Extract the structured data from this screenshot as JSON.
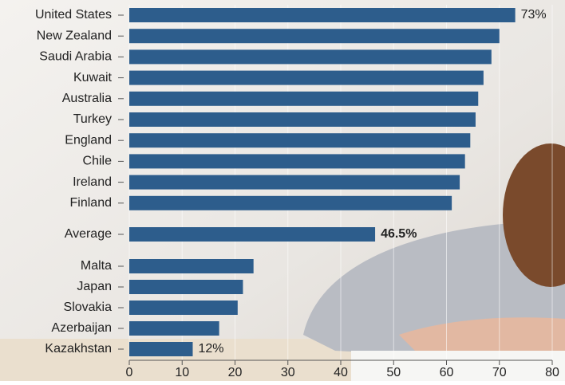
{
  "chart_data": {
    "type": "barh",
    "categories": [
      "United States",
      "New Zealand",
      "Saudi Arabia",
      "Kuwait",
      "Australia",
      "Turkey",
      "England",
      "Chile",
      "Ireland",
      "Finland",
      "Average",
      "Malta",
      "Japan",
      "Slovakia",
      "Azerbaijan",
      "Kazakhstan"
    ],
    "values": [
      73,
      70,
      68.5,
      67,
      66,
      65.5,
      64.5,
      63.5,
      62.5,
      61,
      46.5,
      23.5,
      21.5,
      20.5,
      17,
      12
    ],
    "value_labels": [
      "73%",
      null,
      null,
      null,
      null,
      null,
      null,
      null,
      null,
      null,
      "46.5%",
      null,
      null,
      null,
      null,
      "12%"
    ],
    "color": "#2d5d8c",
    "xlim": [
      0,
      80
    ],
    "xticks": [
      0,
      10,
      20,
      30,
      40,
      50,
      60,
      70,
      80
    ],
    "grid": true
  }
}
